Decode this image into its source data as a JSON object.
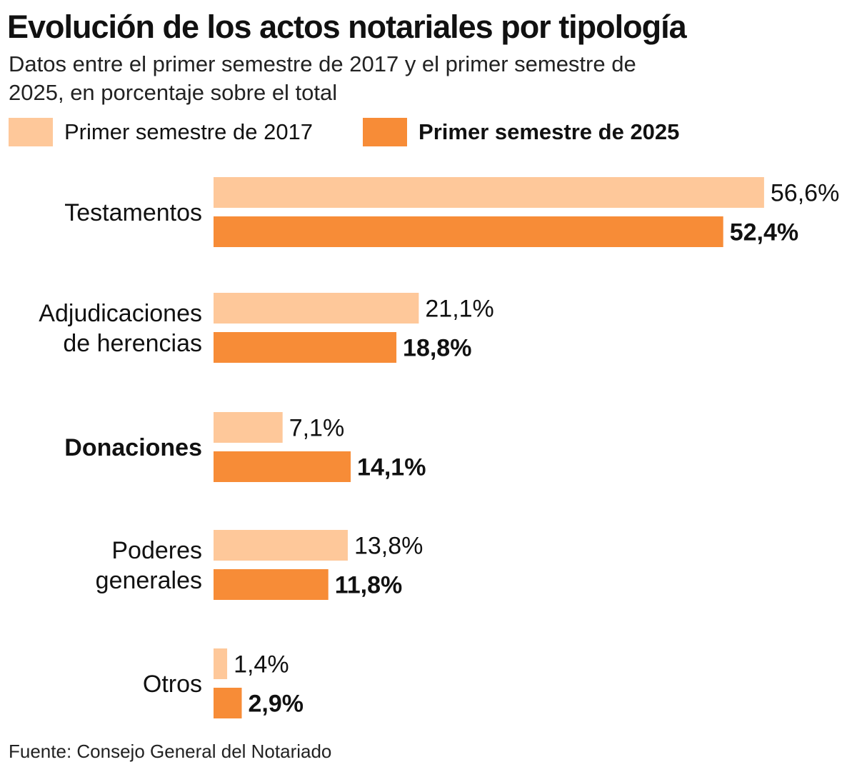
{
  "chart_data": {
    "type": "bar",
    "orientation": "horizontal",
    "title": "Evolución de los actos notariales por tipología",
    "subtitle": "Datos entre el primer semestre de 2017 y el primer semestre de 2025, en porcentaje sobre el total",
    "categories": [
      "Testamentos",
      "Adjudicaciones\nde herencias",
      "Donaciones",
      "Poderes\ngenerales",
      "Otros"
    ],
    "highlighted_category": "Donaciones",
    "series": [
      {
        "name": "Primer semestre de 2017",
        "color": "#fec89a",
        "values": [
          56.6,
          21.1,
          7.1,
          13.8,
          1.4
        ],
        "labels": [
          "56,6%",
          "21,1%",
          "7,1%",
          "13,8%",
          "1,4%"
        ]
      },
      {
        "name": "Primer semestre de 2025",
        "color": "#f78c37",
        "values": [
          52.4,
          18.8,
          14.1,
          11.8,
          2.9
        ],
        "labels": [
          "52,4%",
          "18,8%",
          "14,1%",
          "11,8%",
          "2,9%"
        ]
      }
    ],
    "unit": "%",
    "grid": false,
    "legend_placement": "top",
    "source": "Fuente: Consejo General del Notariado"
  }
}
